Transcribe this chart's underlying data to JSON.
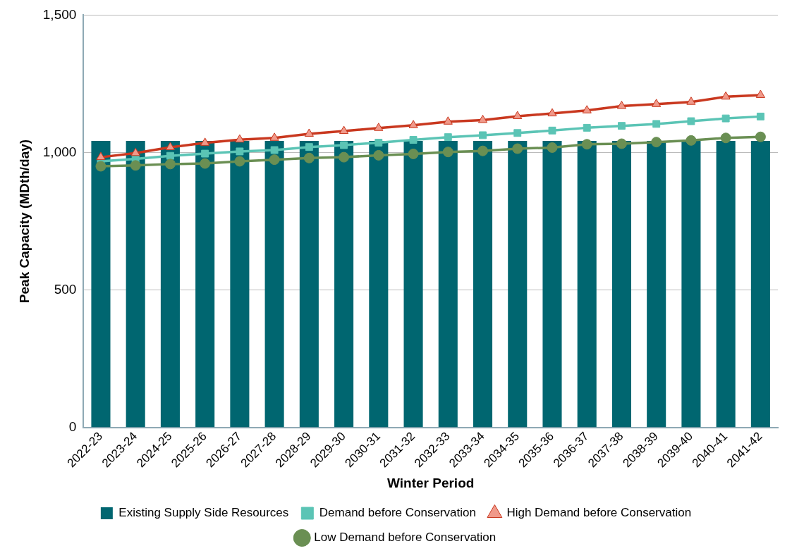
{
  "chart_data": {
    "type": "bar",
    "xlabel": "Winter Period",
    "ylabel": "Peak Capacity (MDth/day)",
    "categories": [
      "2022-23",
      "2023-24",
      "2024-25",
      "2025-26",
      "2026-27",
      "2027-28",
      "2028-29",
      "2029-30",
      "2030-31",
      "2031-32",
      "2032-33",
      "2033-34",
      "2034-35",
      "2035-36",
      "2036-37",
      "2037-38",
      "2038-39",
      "2039-40",
      "2040-41",
      "2041-42"
    ],
    "series": [
      {
        "name": "Existing Supply Side Resources",
        "color": "#006670",
        "values": [
          1042,
          1042,
          1042,
          1042,
          1042,
          1042,
          1042,
          1042,
          1042,
          1042,
          1042,
          1042,
          1042,
          1042,
          1042,
          1042,
          1042,
          1042,
          1042,
          1042
        ]
      },
      {
        "name": "Demand before Conservation",
        "type": "line",
        "marker": "square",
        "color": "#5bc4b5",
        "values": [
          968,
          977,
          988,
          996,
          1004,
          1009,
          1020,
          1027,
          1036,
          1046,
          1056,
          1063,
          1071,
          1080,
          1090,
          1097,
          1104,
          1114,
          1124,
          1131
        ]
      },
      {
        "name": "High Demand before Conservation",
        "type": "line",
        "marker": "triangle",
        "color": "#c9381f",
        "values": [
          983,
          998,
          1019,
          1035,
          1047,
          1053,
          1068,
          1078,
          1089,
          1099,
          1112,
          1118,
          1132,
          1142,
          1153,
          1169,
          1176,
          1184,
          1203,
          1209
        ]
      },
      {
        "name": "Low Demand before Conservation",
        "type": "line",
        "marker": "circle",
        "color": "#6a8f53",
        "values": [
          950,
          953,
          958,
          960,
          968,
          974,
          980,
          983,
          990,
          995,
          1002,
          1006,
          1014,
          1018,
          1030,
          1032,
          1038,
          1044,
          1053,
          1057
        ]
      }
    ],
    "ylim": [
      0,
      1500
    ],
    "yticks": [
      0,
      500,
      {
        "value": 1000,
        "label": "1,000"
      },
      {
        "value": 1500,
        "label": "1,500"
      }
    ],
    "grid": "y",
    "legend": "bottom",
    "line_style": "solid"
  }
}
